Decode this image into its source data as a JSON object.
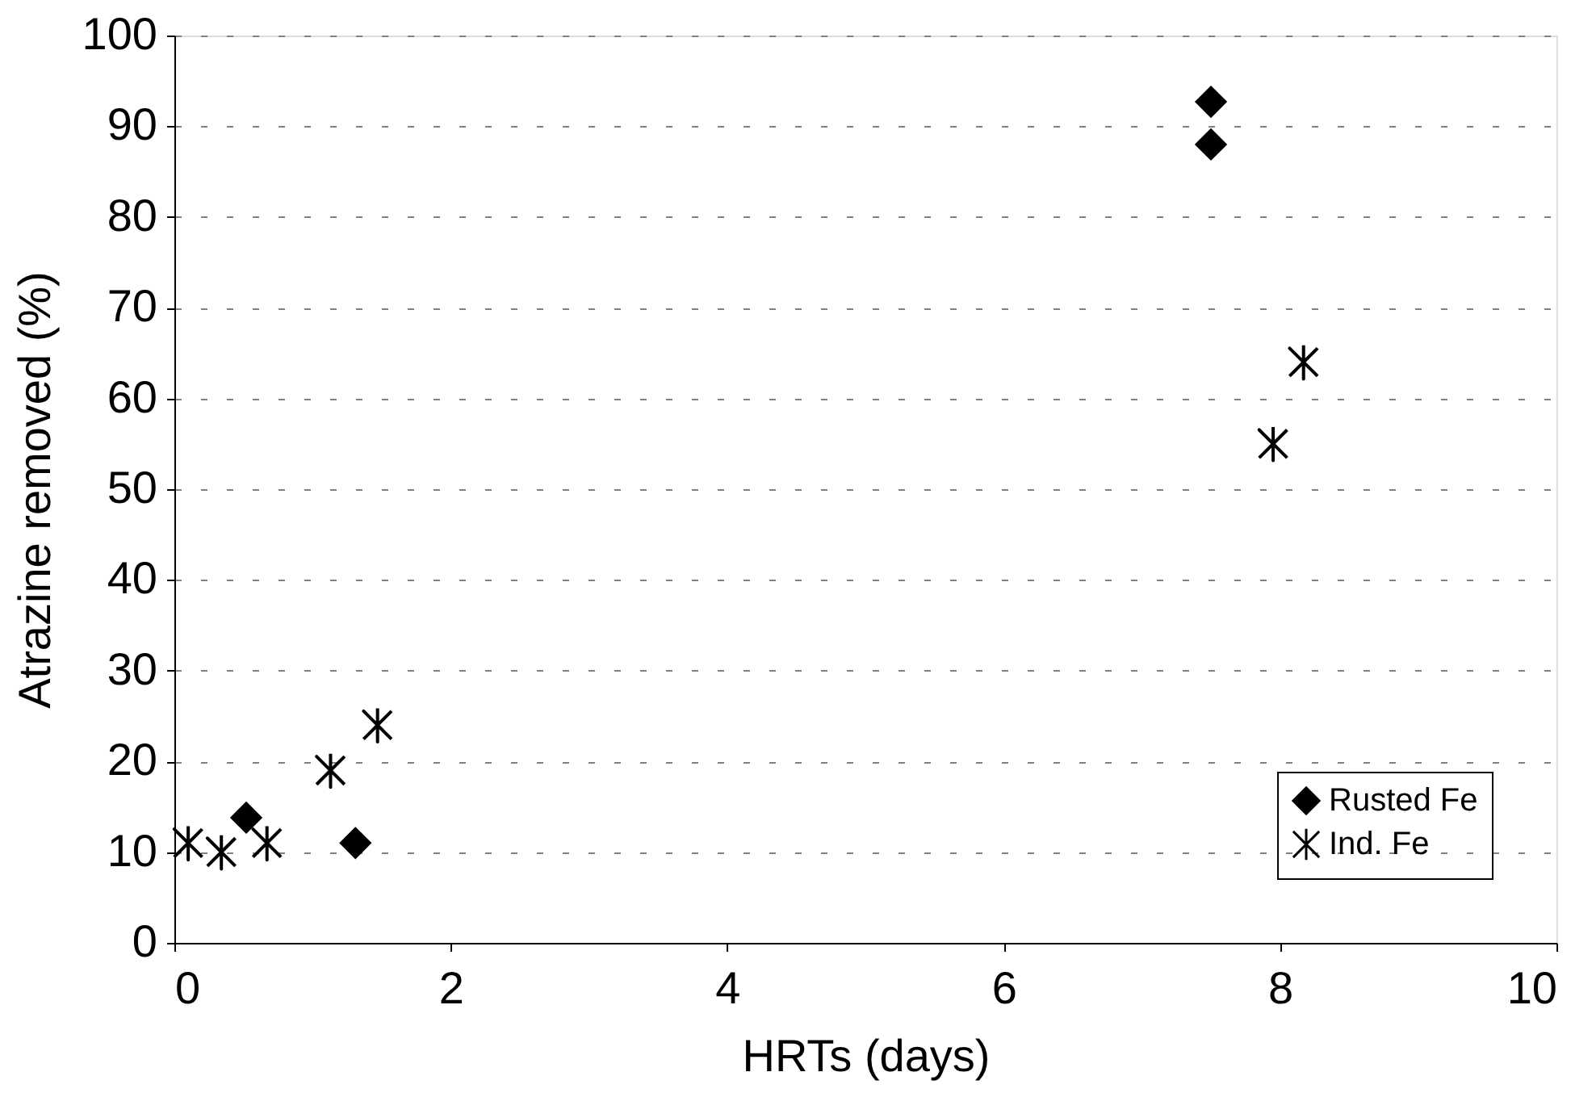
{
  "chart_data": {
    "type": "scatter",
    "xlabel": "HRTs (days)",
    "ylabel": "Atrazine removed (%)",
    "xlim": [
      0,
      10
    ],
    "xticks": [
      0,
      2,
      4,
      6,
      8,
      10
    ],
    "ylim": [
      0,
      100
    ],
    "yticks": [
      0,
      10,
      20,
      30,
      40,
      50,
      60,
      70,
      80,
      90,
      100
    ],
    "grid": "y",
    "legend": "bottom right",
    "series": [
      {
        "name": "Rusted Fe",
        "color": "#000000",
        "marker": "diamond",
        "x": [
          7.5,
          7.5,
          1.31,
          0.52
        ],
        "values": [
          92.7,
          88,
          11,
          13.8
        ]
      },
      {
        "name": "Ind. Fe",
        "color": "#000000",
        "marker": "cross",
        "x": [
          8.17,
          7.95,
          1.13,
          1.47,
          0.67,
          0.34,
          0.1
        ],
        "values": [
          64,
          55,
          19,
          24,
          11,
          10,
          11
        ]
      }
    ]
  }
}
